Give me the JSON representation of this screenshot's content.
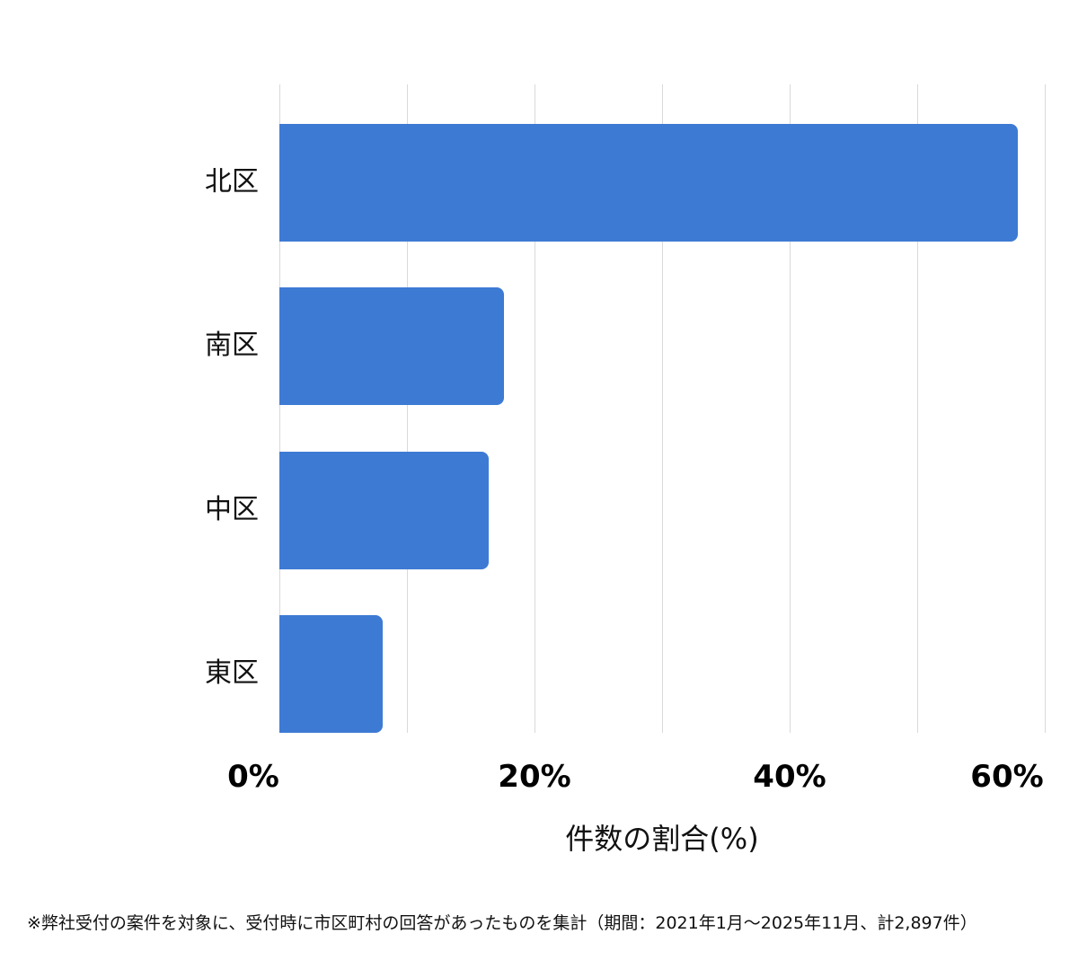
{
  "chart_data": {
    "type": "bar",
    "orientation": "horizontal",
    "categories": [
      "北区",
      "南区",
      "中区",
      "東区"
    ],
    "values": [
      57.9,
      17.6,
      16.4,
      8.1
    ],
    "title": "",
    "xlabel": "件数の割合(%)",
    "ylabel": "",
    "xlim": [
      0,
      60
    ],
    "x_ticks": [
      "0%",
      "20%",
      "40%",
      "60%"
    ],
    "gridlines_every": 10,
    "grid": true,
    "legend": null,
    "bar_color": "#3d7ad4"
  },
  "axis": {
    "ticks": [
      {
        "label": "0%",
        "value": 0
      },
      {
        "label": "20%",
        "value": 20
      },
      {
        "label": "40%",
        "value": 40
      },
      {
        "label": "60%",
        "value": 60
      }
    ],
    "title": "件数の割合(%)"
  },
  "footnote": "※弊社受付の案件を対象に、受付時に市区町村の回答があったものを集計（期間：2021年1月〜2025年11月、計2,897件）"
}
